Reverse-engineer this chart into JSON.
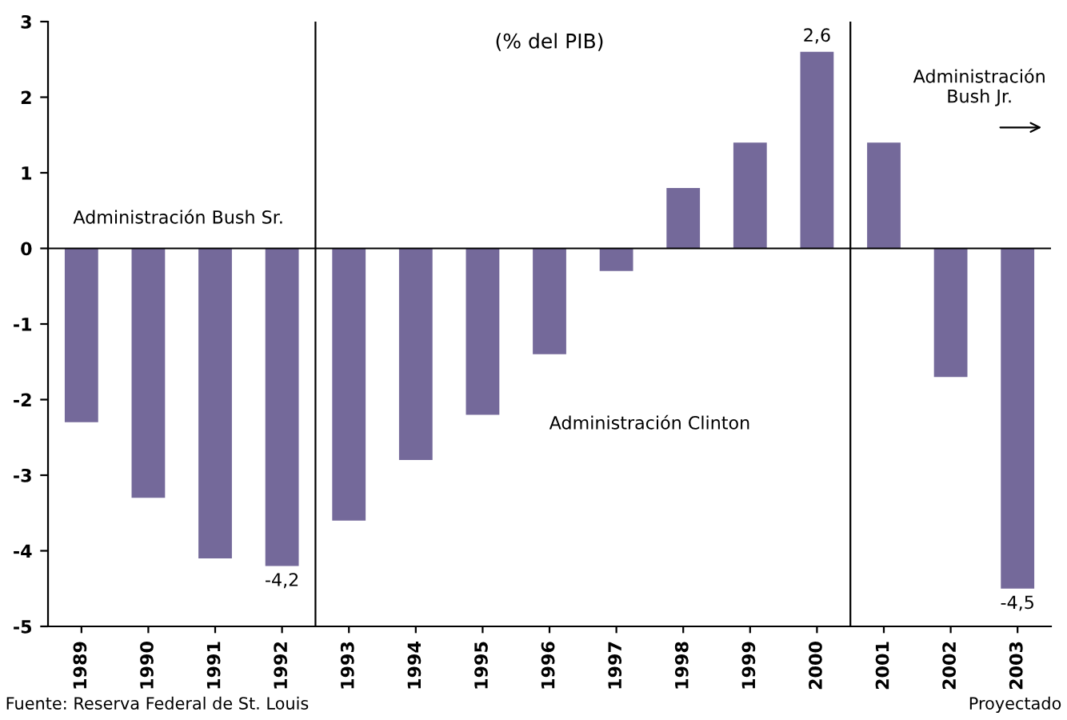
{
  "chart_data": {
    "type": "bar",
    "title": "(% del PIB)",
    "x": [
      1989,
      1990,
      1991,
      1992,
      1993,
      1994,
      1995,
      1996,
      1997,
      1998,
      1999,
      2000,
      2001,
      2002,
      2003
    ],
    "values": [
      -2.3,
      -3.3,
      -4.1,
      -4.2,
      -3.6,
      -2.8,
      -2.2,
      -1.4,
      -0.3,
      0.8,
      1.4,
      2.6,
      1.4,
      -1.7,
      -4.5
    ],
    "value_labels": [
      null,
      null,
      null,
      "-4,2",
      null,
      null,
      null,
      null,
      null,
      null,
      null,
      "2,6",
      null,
      null,
      "-4,5"
    ],
    "color": "#74699a",
    "xlim": [
      1988.5,
      2003.5
    ],
    "xticks": [
      1989,
      1990,
      1991,
      1992,
      1993,
      1994,
      1995,
      1996,
      1997,
      1998,
      1999,
      2000,
      2001,
      2002,
      2003
    ],
    "ylim": [
      -5,
      3
    ],
    "yticks": [
      -5,
      -4,
      -3,
      -2,
      -1,
      0,
      1,
      2,
      3
    ],
    "ref_lines": [
      {
        "axis": "y",
        "value": 0,
        "color": "#000000"
      },
      {
        "axis": "x",
        "value": 1992.5,
        "color": "#000000"
      },
      {
        "axis": "x",
        "value": 2000.5,
        "color": "#000000"
      }
    ],
    "annotations": [
      "Administración Bush Sr.",
      "Administración Clinton",
      "Administración\nBush Jr.",
      "Fuente: Reserva Federal de St. Louis",
      "Proyectado"
    ],
    "grid": false,
    "legend": false
  }
}
